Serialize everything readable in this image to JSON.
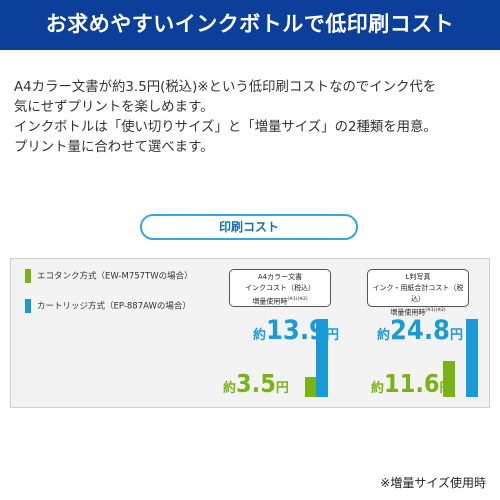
{
  "banner": {
    "title": "お求めやすいインクボトルで低印刷コスト"
  },
  "description": {
    "lines": [
      "A4カラー文書が約3.5円(税込)※という低印刷コストなのでインク代を",
      "気にせずプリントを楽しめます。",
      "インクボトルは「使い切りサイズ」と「増量サイズ」の2種類を用意。",
      "プリント量に合わせて選べます。"
    ]
  },
  "pill": {
    "label": "印刷コスト"
  },
  "legend": {
    "ecotank": {
      "label": "エコタンク方式（EW-M757TWの場合）",
      "color": "#7ab317"
    },
    "cartridge": {
      "label": "カートリッジ方式（EP-887AWの場合）",
      "color": "#1a9bd7"
    }
  },
  "groups": [
    {
      "header": {
        "line1": "A4カラー文書",
        "line2": "インクコスト（税込）",
        "line3": "増量使用時",
        "note": "(※1)(※2)"
      },
      "cartridge": {
        "prefix": "約",
        "value": "13.9",
        "unit": "円",
        "amount": 13.9
      },
      "ecotank": {
        "prefix": "約",
        "value": "3.5",
        "unit": "円",
        "amount": 3.5
      }
    },
    {
      "header": {
        "line1": "L判写真",
        "line2": "インク・用紙合計コスト（税込）",
        "line3": "増量使用時",
        "note": "(※1)(※2)"
      },
      "cartridge": {
        "prefix": "約",
        "value": "24.8",
        "unit": "円",
        "amount": 24.8
      },
      "ecotank": {
        "prefix": "約",
        "value": "11.6",
        "unit": "円",
        "amount": 11.6
      }
    }
  ],
  "footnote": "※増量サイズ使用時",
  "colors": {
    "brand_navy": "#0b3f9a",
    "accent_blue": "#1a9bd7",
    "accent_green": "#7ab317"
  }
}
